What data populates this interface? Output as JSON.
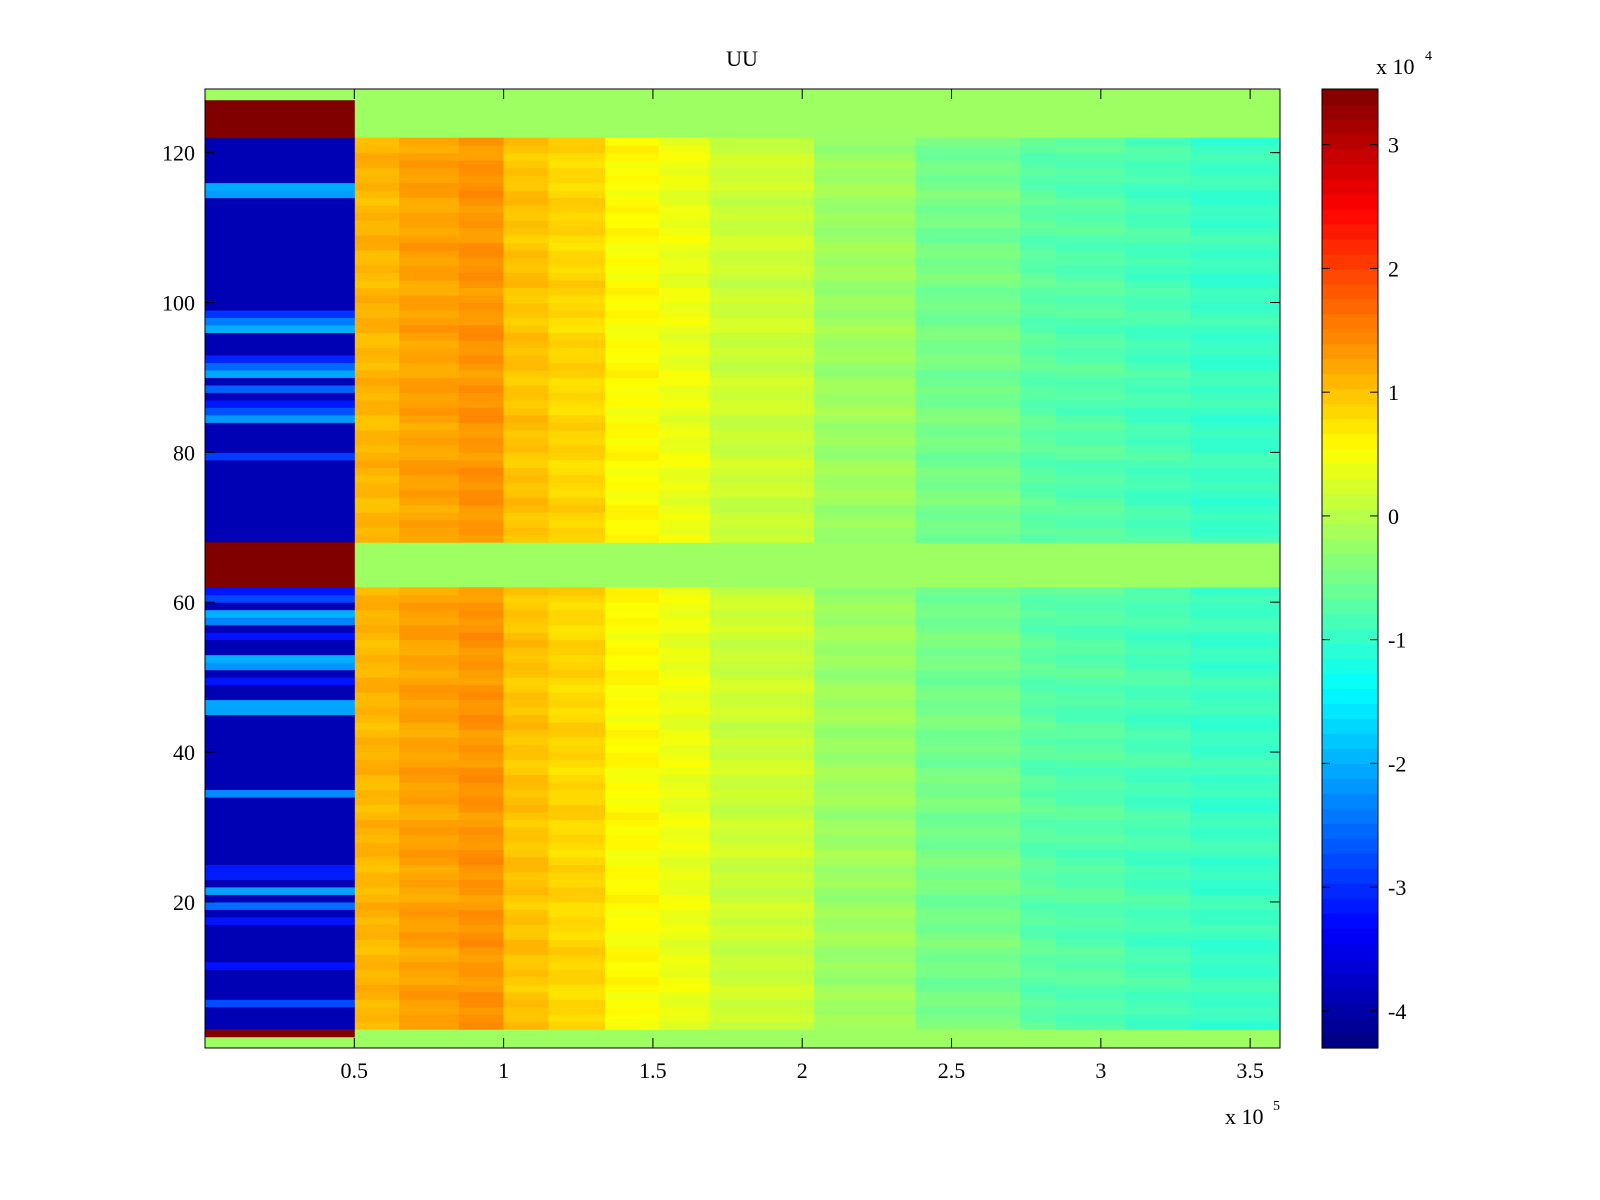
{
  "chart_data": {
    "type": "heatmap",
    "title": "UU",
    "xlabel": "",
    "ylabel": "",
    "x_multiplier_label": {
      "base": "x 10",
      "exp": "5"
    },
    "xlim": [
      0,
      3.6
    ],
    "ylim": [
      0.5,
      128.5
    ],
    "x_ticks": [
      {
        "value": 0.5,
        "label": "0.5"
      },
      {
        "value": 1,
        "label": "1"
      },
      {
        "value": 1.5,
        "label": "1.5"
      },
      {
        "value": 2,
        "label": "2"
      },
      {
        "value": 2.5,
        "label": "2.5"
      },
      {
        "value": 3,
        "label": "3"
      },
      {
        "value": 3.5,
        "label": "3.5"
      }
    ],
    "y_ticks": [
      {
        "value": 20,
        "label": "20"
      },
      {
        "value": 40,
        "label": "40"
      },
      {
        "value": 60,
        "label": "60"
      },
      {
        "value": 80,
        "label": "80"
      },
      {
        "value": 100,
        "label": "100"
      },
      {
        "value": 120,
        "label": "120"
      }
    ],
    "colormap": "jet",
    "colorbar": {
      "range": [
        -4.3,
        3.45
      ],
      "multiplier_label": {
        "base": "x 10",
        "exp": "4"
      },
      "ticks": [
        {
          "value": 3,
          "label": "3"
        },
        {
          "value": 2,
          "label": "2"
        },
        {
          "value": 1,
          "label": "1"
        },
        {
          "value": 0,
          "label": "0"
        },
        {
          "value": -1,
          "label": "-1"
        },
        {
          "value": -2,
          "label": "-2"
        },
        {
          "value": -3,
          "label": "-3"
        },
        {
          "value": -4,
          "label": "-4"
        }
      ]
    },
    "x_columns": {
      "edges": [
        0,
        0.5,
        0.65,
        0.85,
        1.0,
        1.15,
        1.34,
        1.52,
        1.69,
        2.04,
        2.38,
        2.73,
        2.85,
        3.08,
        3.3,
        3.6
      ],
      "values": [
        -3.9,
        1.1,
        1.25,
        1.35,
        1.0,
        0.85,
        0.55,
        0.4,
        0.15,
        -0.2,
        -0.5,
        -0.7,
        -0.75,
        -0.85,
        -0.95
      ]
    },
    "y_segments": {
      "bottom_pad": [
        0.5,
        2
      ],
      "bottom_red": [
        2,
        3
      ],
      "band1": [
        3,
        62
      ],
      "gap": [
        62,
        68
      ],
      "red_mid": [
        62,
        68
      ],
      "band2": [
        68,
        122
      ],
      "top_red": [
        122,
        127
      ],
      "top_pad": [
        127,
        128.5
      ]
    },
    "pad_value": -0.2,
    "red_value": 3.45,
    "left_column_bright_rows": [
      6,
      11,
      17,
      19,
      21,
      23,
      24,
      34,
      45,
      46,
      49,
      51,
      52,
      55,
      57,
      58,
      60,
      61,
      79,
      84,
      85,
      86,
      88,
      90,
      91,
      92,
      96,
      97,
      98,
      114,
      115
    ]
  }
}
